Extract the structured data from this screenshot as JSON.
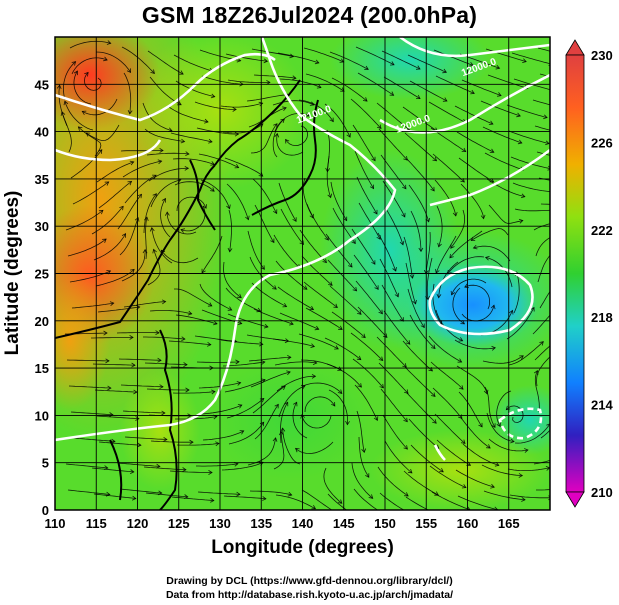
{
  "title": "GSM 18Z26Jul2024 (200.0hPa)",
  "xlabel": "Longitude (degrees)",
  "ylabel": "Latitude  (degrees)",
  "credits": {
    "line1": "Drawing by DCL (https://www.gfd-dennou.org/library/dcl/)",
    "line2": "Data from http://database.rish.kyoto-u.ac.jp/arch/jmadata/"
  },
  "map": {
    "lon_range": [
      110,
      170
    ],
    "lat_range": [
      0,
      50
    ],
    "lon_ticks": [
      110,
      115,
      120,
      125,
      130,
      135,
      140,
      145,
      150,
      155,
      160,
      165
    ],
    "lat_ticks": [
      0,
      5,
      10,
      15,
      20,
      25,
      30,
      35,
      40,
      45
    ],
    "grid": true
  },
  "colorbar": {
    "min": 210,
    "max": 230,
    "labels": [
      "230",
      "226",
      "222",
      "218",
      "214",
      "210"
    ],
    "colors": [
      "#e000c0",
      "#3020c0",
      "#1080ff",
      "#20d0c8",
      "#30d030",
      "#90e010",
      "#f0b000",
      "#ff6020",
      "#e04040"
    ]
  },
  "contour_labels": [
    {
      "text": "12000.0",
      "lon": 161.5,
      "lat": 46.5
    },
    {
      "text": "12000.0",
      "lon": 153.5,
      "lat": 40.5
    },
    {
      "text": "12100.0",
      "lon": 141.5,
      "lat": 41.5
    }
  ]
}
